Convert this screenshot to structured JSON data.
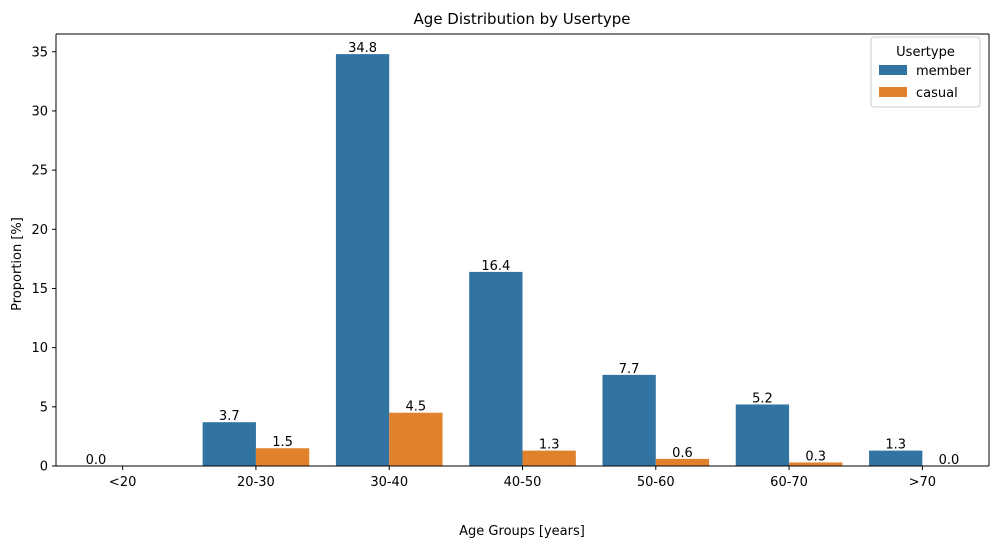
{
  "chart_data": {
    "type": "bar",
    "title": "Age Distribution by Usertype",
    "xlabel": "Age Groups [years]",
    "ylabel": "Proportion [%]",
    "categories": [
      "<20",
      "20-30",
      "30-40",
      "40-50",
      "50-60",
      "60-70",
      ">70"
    ],
    "series": [
      {
        "name": "member",
        "values": [
          0.0,
          3.7,
          34.8,
          16.4,
          7.7,
          5.2,
          1.3
        ],
        "color": "#3274a1"
      },
      {
        "name": "casual",
        "values": [
          0.0,
          1.5,
          4.5,
          1.3,
          0.6,
          0.3,
          0.0
        ],
        "color": "#e1812c"
      }
    ],
    "data_labels": [
      [
        "0.0",
        "3.7",
        "34.8",
        "16.4",
        "7.7",
        "5.2",
        "1.3"
      ],
      [
        "",
        "1.5",
        "4.5",
        "1.3",
        "0.6",
        "0.3",
        "0.0"
      ]
    ],
    "ylim": [
      0,
      36.5
    ],
    "yticks": [
      0,
      5,
      10,
      15,
      20,
      25,
      30,
      35
    ],
    "legend": {
      "title": "Usertype",
      "placement": "top-right"
    },
    "grid": false
  }
}
